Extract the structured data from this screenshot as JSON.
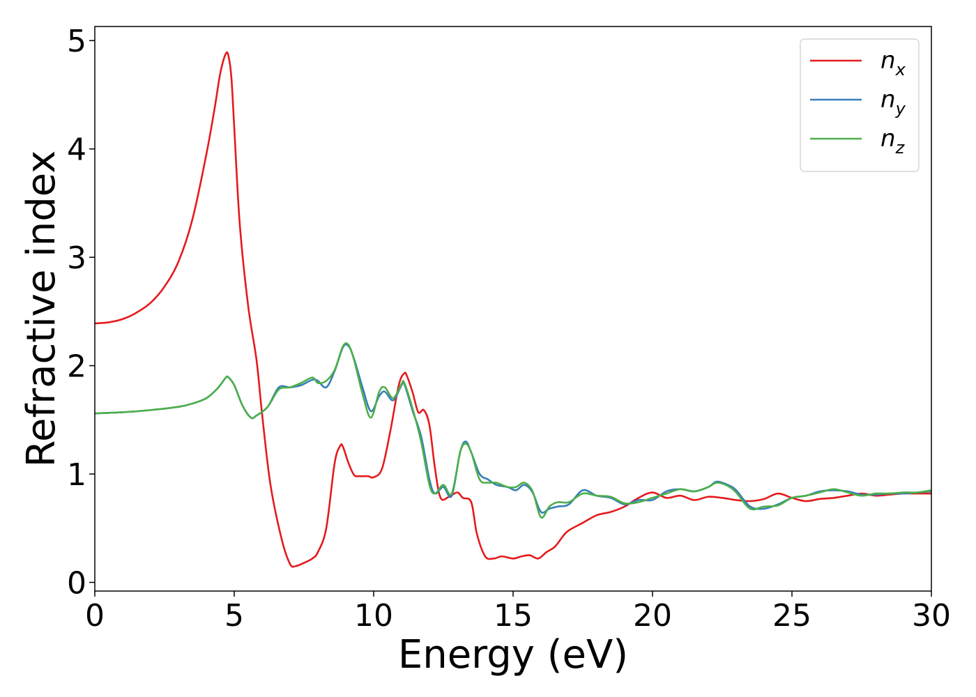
{
  "chart_data": {
    "type": "line",
    "title": "",
    "xlabel": "Energy (eV)",
    "ylabel": "Refractive index",
    "xlim": [
      0,
      30
    ],
    "ylim": [
      -0.08,
      5.13
    ],
    "xticks": [
      0,
      5,
      10,
      15,
      20,
      25,
      30
    ],
    "yticks": [
      0,
      1,
      2,
      3,
      4,
      5
    ],
    "grid": false,
    "legend_position": "top-right",
    "series": [
      {
        "name": "n",
        "subscript": "x",
        "color": "#e41a1c",
        "x": [
          0,
          0.5,
          1,
          1.5,
          2,
          2.5,
          3,
          3.5,
          4,
          4.3,
          4.5,
          4.7,
          4.8,
          4.9,
          5.0,
          5.2,
          5.5,
          5.8,
          6.0,
          6.3,
          6.7,
          7.0,
          7.2,
          7.5,
          7.8,
          8.0,
          8.3,
          8.6,
          8.8,
          8.9,
          9.1,
          9.3,
          9.5,
          9.8,
          10.0,
          10.3,
          10.6,
          10.9,
          11.1,
          11.2,
          11.4,
          11.6,
          11.8,
          12.0,
          12.2,
          12.4,
          12.7,
          13.0,
          13.2,
          13.5,
          13.7,
          14.0,
          14.3,
          14.6,
          15.0,
          15.3,
          15.6,
          15.9,
          16.2,
          16.5,
          16.8,
          17.0,
          17.5,
          18.0,
          18.5,
          19.0,
          19.5,
          20.0,
          20.5,
          21.0,
          21.5,
          22.0,
          22.5,
          23.0,
          23.5,
          24.0,
          24.5,
          25.0,
          25.5,
          26.0,
          26.5,
          27.0,
          27.5,
          28.0,
          28.5,
          29.0,
          29.5,
          30.0
        ],
        "y": [
          2.39,
          2.4,
          2.43,
          2.49,
          2.58,
          2.73,
          2.96,
          3.35,
          3.95,
          4.38,
          4.7,
          4.88,
          4.85,
          4.65,
          4.2,
          3.3,
          2.55,
          2.05,
          1.55,
          0.9,
          0.4,
          0.17,
          0.15,
          0.18,
          0.22,
          0.28,
          0.5,
          1.1,
          1.26,
          1.25,
          1.1,
          0.99,
          0.98,
          0.98,
          0.97,
          1.05,
          1.4,
          1.82,
          1.93,
          1.9,
          1.75,
          1.57,
          1.59,
          1.45,
          1.05,
          0.78,
          0.79,
          0.83,
          0.78,
          0.74,
          0.45,
          0.24,
          0.22,
          0.24,
          0.22,
          0.24,
          0.25,
          0.22,
          0.28,
          0.33,
          0.43,
          0.48,
          0.55,
          0.62,
          0.65,
          0.7,
          0.78,
          0.83,
          0.78,
          0.8,
          0.76,
          0.79,
          0.78,
          0.76,
          0.75,
          0.77,
          0.82,
          0.78,
          0.75,
          0.77,
          0.78,
          0.8,
          0.82,
          0.8,
          0.81,
          0.82,
          0.82,
          0.82
        ]
      },
      {
        "name": "n",
        "subscript": "y",
        "color": "#377eb8",
        "x": [
          0,
          1,
          2,
          3,
          3.5,
          4,
          4.4,
          4.7,
          4.8,
          5.0,
          5.3,
          5.6,
          5.8,
          6.2,
          6.6,
          7.0,
          7.4,
          7.8,
          8.0,
          8.3,
          8.6,
          8.9,
          9.1,
          9.3,
          9.6,
          9.9,
          10.2,
          10.4,
          10.7,
          11.0,
          11.1,
          11.4,
          11.7,
          12.0,
          12.2,
          12.5,
          12.8,
          13.1,
          13.3,
          13.5,
          13.8,
          14.1,
          14.4,
          14.8,
          15.1,
          15.4,
          15.7,
          16.0,
          16.3,
          16.6,
          17.0,
          17.5,
          18.0,
          18.5,
          19.0,
          19.5,
          20.0,
          20.5,
          21.0,
          21.5,
          22.0,
          22.3,
          22.7,
          23.0,
          23.5,
          24.0,
          24.5,
          25.0,
          25.5,
          26.0,
          26.5,
          27.0,
          27.5,
          28.0,
          28.5,
          29.0,
          29.5,
          30.0
        ],
        "y": [
          1.56,
          1.57,
          1.59,
          1.62,
          1.65,
          1.7,
          1.79,
          1.89,
          1.89,
          1.82,
          1.63,
          1.52,
          1.54,
          1.62,
          1.8,
          1.8,
          1.82,
          1.87,
          1.86,
          1.8,
          1.95,
          2.17,
          2.18,
          2.06,
          1.8,
          1.58,
          1.72,
          1.76,
          1.68,
          1.82,
          1.83,
          1.58,
          1.35,
          0.95,
          0.82,
          0.88,
          0.8,
          1.2,
          1.3,
          1.2,
          1.0,
          0.95,
          0.9,
          0.88,
          0.85,
          0.9,
          0.83,
          0.65,
          0.68,
          0.7,
          0.72,
          0.85,
          0.8,
          0.78,
          0.72,
          0.76,
          0.76,
          0.84,
          0.86,
          0.84,
          0.88,
          0.93,
          0.9,
          0.85,
          0.7,
          0.68,
          0.72,
          0.78,
          0.8,
          0.84,
          0.85,
          0.84,
          0.81,
          0.81,
          0.82,
          0.82,
          0.83,
          0.84
        ]
      },
      {
        "name": "n",
        "subscript": "z",
        "color": "#4daf4a",
        "x": [
          0,
          1,
          2,
          3,
          3.5,
          4,
          4.4,
          4.7,
          4.8,
          5.0,
          5.3,
          5.6,
          5.8,
          6.2,
          6.6,
          7.0,
          7.4,
          7.8,
          8.0,
          8.3,
          8.6,
          8.9,
          9.1,
          9.3,
          9.6,
          9.9,
          10.2,
          10.4,
          10.7,
          11.0,
          11.1,
          11.4,
          11.7,
          12.0,
          12.2,
          12.5,
          12.8,
          13.1,
          13.3,
          13.5,
          13.8,
          14.1,
          14.4,
          14.8,
          15.1,
          15.4,
          15.7,
          16.0,
          16.3,
          16.6,
          17.0,
          17.5,
          18.0,
          18.5,
          19.0,
          19.5,
          20.0,
          20.5,
          21.0,
          21.5,
          22.0,
          22.3,
          22.7,
          23.0,
          23.5,
          24.0,
          24.5,
          25.0,
          25.5,
          26.0,
          26.5,
          27.0,
          27.5,
          28.0,
          28.5,
          29.0,
          29.5,
          30.0
        ],
        "y": [
          1.56,
          1.57,
          1.59,
          1.62,
          1.65,
          1.7,
          1.79,
          1.89,
          1.89,
          1.82,
          1.63,
          1.52,
          1.54,
          1.62,
          1.78,
          1.8,
          1.84,
          1.89,
          1.84,
          1.86,
          1.96,
          2.18,
          2.19,
          2.05,
          1.74,
          1.52,
          1.76,
          1.8,
          1.7,
          1.83,
          1.84,
          1.6,
          1.3,
          0.9,
          0.82,
          0.9,
          0.82,
          1.2,
          1.28,
          1.2,
          0.95,
          0.92,
          0.92,
          0.88,
          0.88,
          0.92,
          0.84,
          0.6,
          0.7,
          0.74,
          0.74,
          0.82,
          0.8,
          0.79,
          0.73,
          0.74,
          0.78,
          0.82,
          0.86,
          0.84,
          0.88,
          0.92,
          0.89,
          0.83,
          0.68,
          0.7,
          0.71,
          0.78,
          0.8,
          0.83,
          0.86,
          0.83,
          0.8,
          0.82,
          0.82,
          0.83,
          0.83,
          0.85
        ]
      }
    ]
  }
}
